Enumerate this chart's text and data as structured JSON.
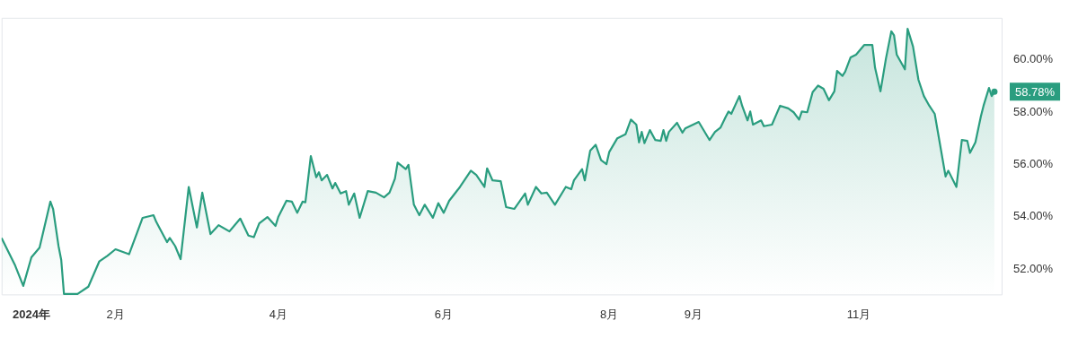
{
  "chart_data": {
    "type": "area",
    "color": "#2a9d7f",
    "x": [
      "2023-12-21",
      "2023-12-26",
      "2023-12-29",
      "2024-01-01",
      "2024-01-04",
      "2024-01-08",
      "2024-01-09",
      "2024-01-11",
      "2024-01-12",
      "2024-01-13",
      "2024-01-18",
      "2024-01-22",
      "2024-01-26",
      "2024-01-29",
      "2024-02-01",
      "2024-02-06",
      "2024-02-11",
      "2024-02-15",
      "2024-02-16",
      "2024-02-20",
      "2024-02-21",
      "2024-02-23",
      "2024-02-25",
      "2024-02-28",
      "2024-03-02",
      "2024-03-04",
      "2024-03-07",
      "2024-03-10",
      "2024-03-14",
      "2024-03-18",
      "2024-03-21",
      "2024-03-23",
      "2024-03-25",
      "2024-03-28",
      "2024-03-31",
      "2024-04-01",
      "2024-04-04",
      "2024-04-06",
      "2024-04-08",
      "2024-04-10",
      "2024-04-11",
      "2024-04-13",
      "2024-04-15",
      "2024-04-16",
      "2024-04-17",
      "2024-04-19",
      "2024-04-21",
      "2024-04-22",
      "2024-04-24",
      "2024-04-26",
      "2024-04-27",
      "2024-04-29",
      "2024-05-01",
      "2024-05-04",
      "2024-05-07",
      "2024-05-10",
      "2024-05-12",
      "2024-05-14",
      "2024-05-15",
      "2024-05-18",
      "2024-05-19",
      "2024-05-21",
      "2024-05-23",
      "2024-05-25",
      "2024-05-28",
      "2024-05-30",
      "2024-06-01",
      "2024-06-03",
      "2024-06-07",
      "2024-06-11",
      "2024-06-13",
      "2024-06-16",
      "2024-06-17",
      "2024-06-19",
      "2024-06-22",
      "2024-06-24",
      "2024-06-27",
      "2024-07-01",
      "2024-07-02",
      "2024-07-05",
      "2024-07-07",
      "2024-07-09",
      "2024-07-12",
      "2024-07-16",
      "2024-07-18",
      "2024-07-19",
      "2024-07-22",
      "2024-07-23",
      "2024-07-25",
      "2024-07-27",
      "2024-07-29",
      "2024-07-31",
      "2024-08-01",
      "2024-08-04",
      "2024-08-07",
      "2024-08-09",
      "2024-08-11",
      "2024-08-12",
      "2024-08-13",
      "2024-08-14",
      "2024-08-16",
      "2024-08-18",
      "2024-08-20",
      "2024-08-21",
      "2024-08-22",
      "2024-08-23",
      "2024-08-26",
      "2024-08-28",
      "2024-08-29",
      "2024-09-03",
      "2024-09-07",
      "2024-09-09",
      "2024-09-11",
      "2024-09-13",
      "2024-09-14",
      "2024-09-15",
      "2024-09-18",
      "2024-09-19",
      "2024-09-21",
      "2024-09-22",
      "2024-09-23",
      "2024-09-26",
      "2024-09-27",
      "2024-09-30",
      "2024-10-03",
      "2024-10-06",
      "2024-10-08",
      "2024-10-10",
      "2024-10-11",
      "2024-10-13",
      "2024-10-15",
      "2024-10-17",
      "2024-10-19",
      "2024-10-21",
      "2024-10-23",
      "2024-10-24",
      "2024-10-26",
      "2024-10-27",
      "2024-10-29",
      "2024-10-31",
      "2024-11-03",
      "2024-11-06",
      "2024-11-07",
      "2024-11-09",
      "2024-11-11",
      "2024-11-13",
      "2024-11-14",
      "2024-11-15",
      "2024-11-18",
      "2024-11-19",
      "2024-11-21",
      "2024-11-23",
      "2024-11-25",
      "2024-11-27",
      "2024-11-29",
      "2024-12-03",
      "2024-12-04",
      "2024-12-07",
      "2024-12-09",
      "2024-12-11",
      "2024-12-12",
      "2024-12-14",
      "2024-12-16",
      "2024-12-17",
      "2024-12-19",
      "2024-12-20",
      "2024-12-21"
    ],
    "values": [
      53.19,
      52.14,
      51.36,
      52.45,
      52.82,
      54.58,
      54.3,
      52.88,
      52.35,
      51.05,
      51.05,
      51.33,
      52.29,
      52.51,
      52.76,
      52.57,
      53.96,
      54.06,
      53.81,
      53.03,
      53.19,
      52.88,
      52.38,
      55.14,
      53.59,
      54.92,
      53.34,
      53.68,
      53.44,
      53.93,
      53.28,
      53.22,
      53.75,
      53.99,
      53.65,
      53.99,
      54.61,
      54.58,
      54.15,
      54.58,
      54.55,
      56.32,
      55.51,
      55.7,
      55.39,
      55.6,
      55.08,
      55.29,
      54.89,
      54.98,
      54.46,
      54.89,
      53.96,
      54.98,
      54.92,
      54.74,
      54.92,
      55.45,
      56.07,
      55.82,
      55.98,
      54.46,
      54.06,
      54.46,
      53.96,
      54.52,
      54.15,
      54.61,
      55.14,
      55.76,
      55.6,
      55.14,
      55.85,
      55.39,
      55.36,
      54.37,
      54.3,
      54.89,
      54.46,
      55.14,
      54.89,
      54.92,
      54.46,
      55.14,
      55.05,
      55.39,
      55.82,
      55.39,
      56.53,
      56.75,
      56.16,
      56.01,
      56.47,
      57.0,
      57.15,
      57.71,
      57.52,
      56.84,
      57.24,
      56.81,
      57.31,
      56.93,
      56.9,
      57.31,
      56.9,
      57.24,
      57.59,
      57.21,
      57.37,
      57.62,
      56.93,
      57.24,
      57.4,
      57.83,
      58.02,
      57.93,
      58.61,
      58.24,
      57.68,
      58.02,
      57.52,
      57.68,
      57.46,
      57.52,
      58.24,
      58.14,
      57.99,
      57.71,
      58.02,
      57.99,
      58.76,
      59.01,
      58.89,
      58.45,
      58.79,
      59.57,
      59.38,
      59.54,
      60.09,
      60.19,
      60.56,
      60.56,
      59.69,
      58.79,
      60.03,
      61.08,
      60.93,
      60.19,
      59.63,
      61.18,
      60.5,
      59.23,
      58.61,
      58.24,
      57.93,
      55.54,
      55.76,
      55.14,
      56.93,
      56.9,
      56.44,
      56.84,
      57.83,
      58.24,
      58.92,
      58.61,
      58.78
    ],
    "xlim": [
      "2023-12-21",
      "2024-12-24"
    ],
    "xticks": [
      {
        "value": "2024-01-01",
        "label": "2024年"
      },
      {
        "value": "2024-02-01",
        "label": "2月"
      },
      {
        "value": "2024-04-01",
        "label": "4月"
      },
      {
        "value": "2024-06-01",
        "label": "6月"
      },
      {
        "value": "2024-08-01",
        "label": "8月"
      },
      {
        "value": "2024-09-01",
        "label": "9月"
      },
      {
        "value": "2024-11-01",
        "label": "11月"
      }
    ],
    "ylim": [
      51.0,
      61.6
    ],
    "yticks": [
      {
        "value": 52,
        "label": "52.00%"
      },
      {
        "value": 54,
        "label": "54.00%"
      },
      {
        "value": 56,
        "label": "56.00%"
      },
      {
        "value": 58,
        "label": "58.00%"
      },
      {
        "value": 60,
        "label": "60.00%"
      }
    ],
    "annotations": [
      {
        "text": "58.78%",
        "x": "2024-12-21",
        "y": 58.78
      }
    ],
    "grid": false,
    "legend": false
  }
}
